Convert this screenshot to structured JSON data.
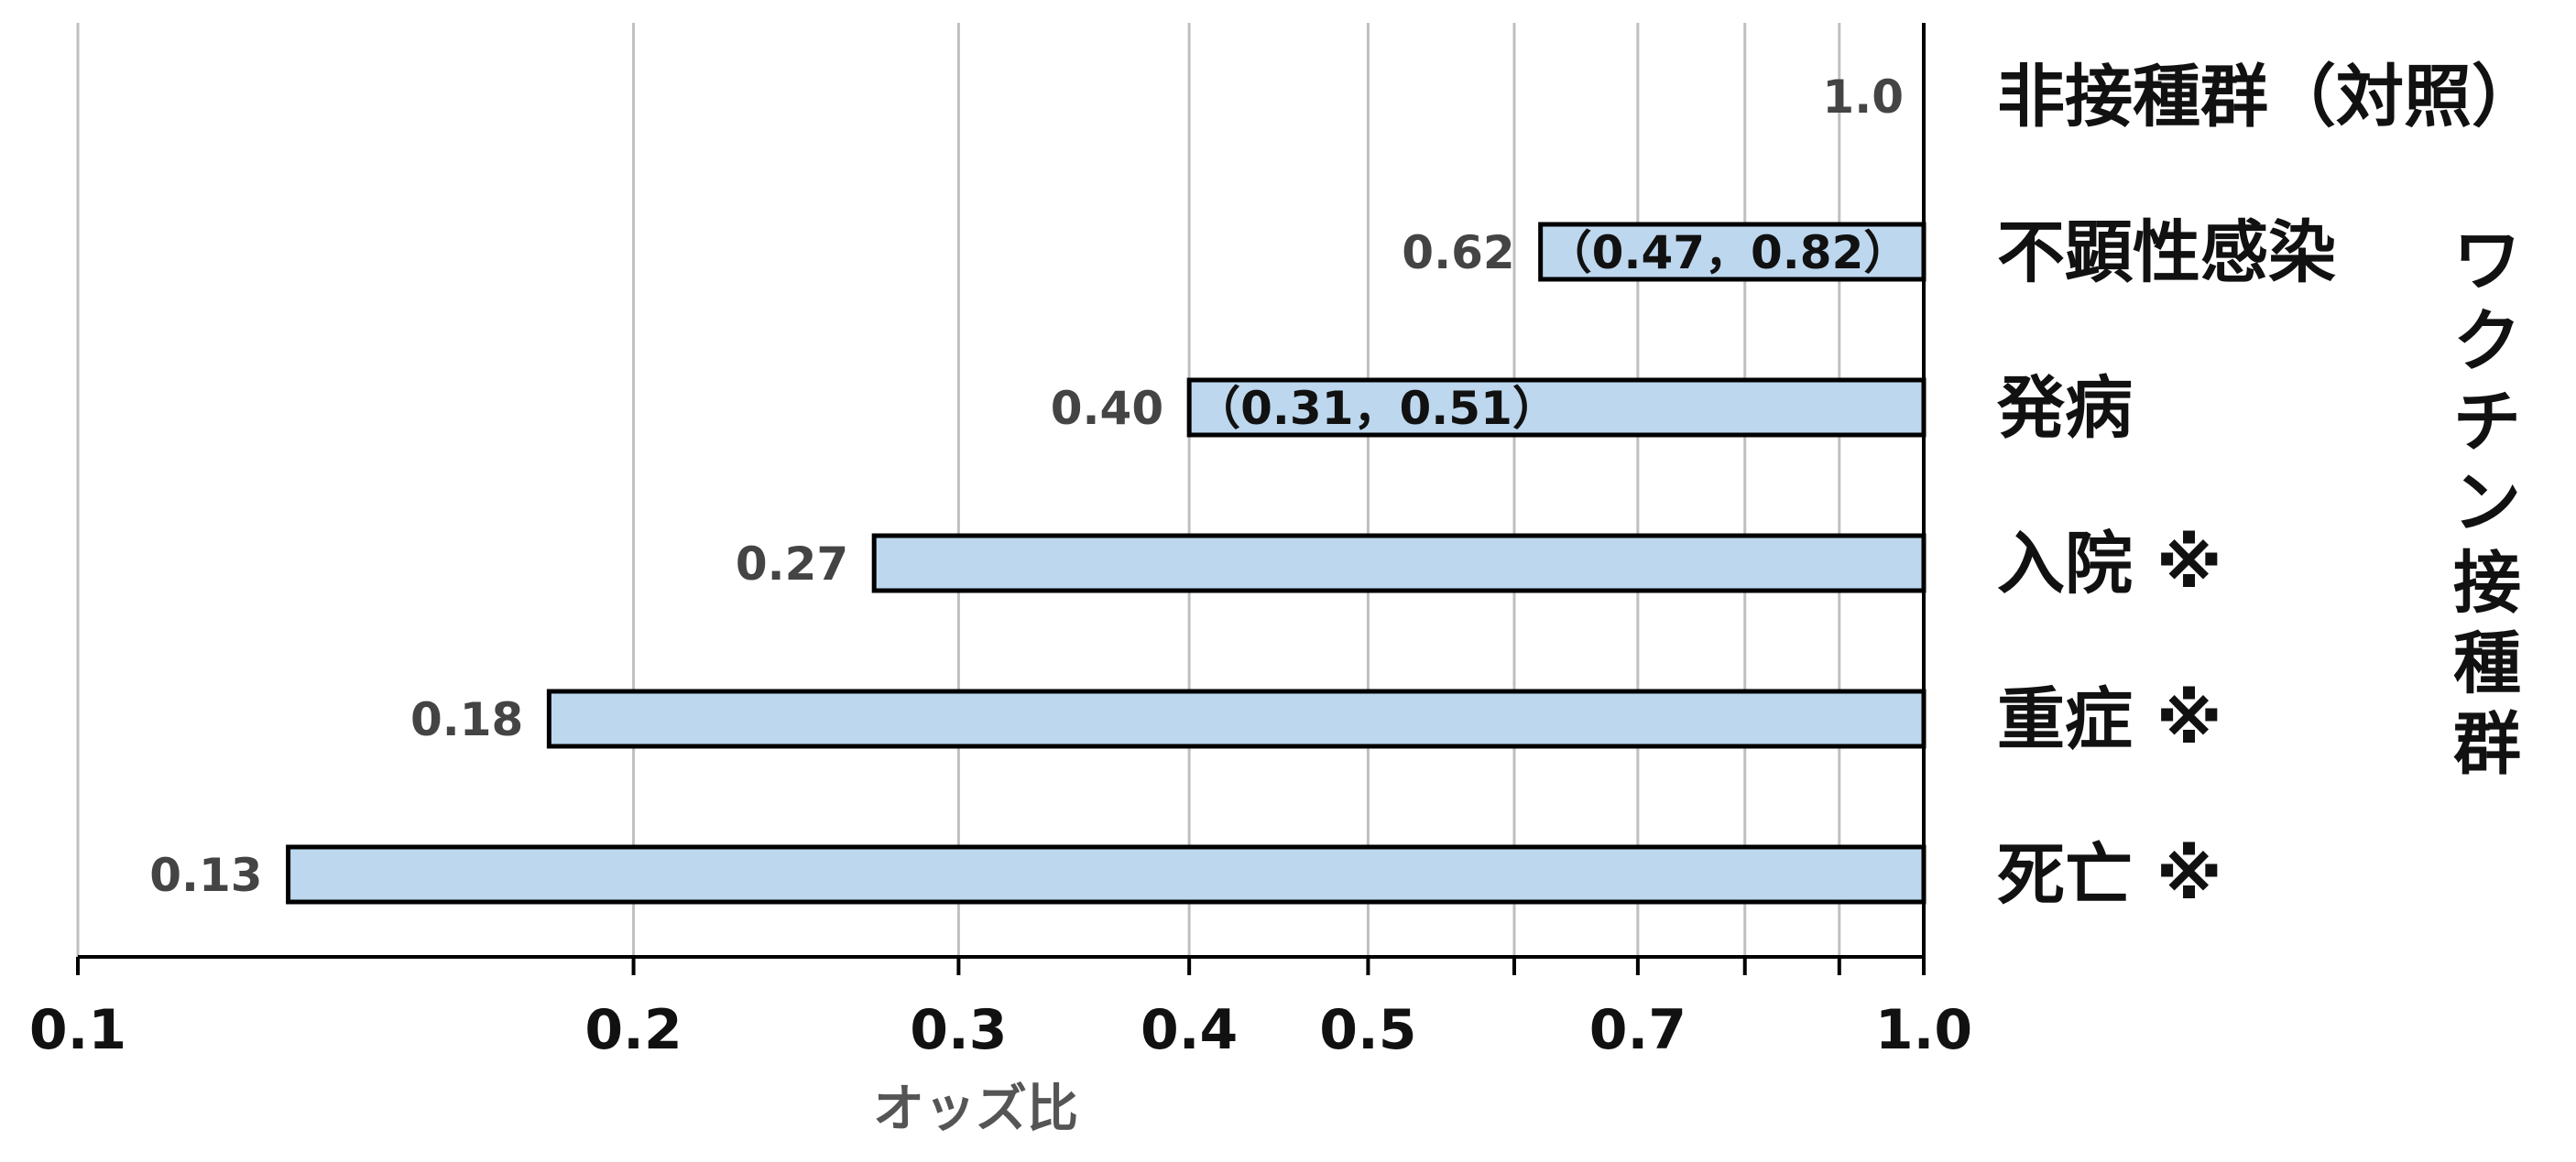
{
  "chart_data": {
    "type": "bar",
    "orientation": "horizontal",
    "x_scale": "log",
    "xlim": [
      0.1,
      1.0
    ],
    "grid": true,
    "legend": "none",
    "xlabel": "オッズ比",
    "x_ticks": [
      {
        "value": 0.1,
        "label": "0.1"
      },
      {
        "value": 0.2,
        "label": "0.2"
      },
      {
        "value": 0.3,
        "label": "0.3"
      },
      {
        "value": 0.4,
        "label": "0.4"
      },
      {
        "value": 0.5,
        "label": "0.5"
      },
      {
        "value": 0.7,
        "label": "0.7"
      },
      {
        "value": 1.0,
        "label": "1.0"
      }
    ],
    "minor_gridlines": [
      0.6,
      0.8,
      0.9
    ],
    "group_label": "ワクチン接種群",
    "categories": [
      "非接種群（対照）",
      "不顕性感染",
      "発病",
      "入院 ※",
      "重症 ※",
      "死亡 ※"
    ],
    "values": [
      1.0,
      0.62,
      0.4,
      0.27,
      0.18,
      0.13
    ],
    "value_labels": [
      "1.0",
      "0.62",
      "0.40",
      "0.27",
      "0.18",
      "0.13"
    ],
    "ci_labels": [
      "",
      "（0.47，0.82）",
      "（0.31，0.51）",
      "",
      "",
      ""
    ],
    "bar_color": "#bdd7ee",
    "bar_border_color": "#000000",
    "grid_color": "#bfbfbf"
  }
}
